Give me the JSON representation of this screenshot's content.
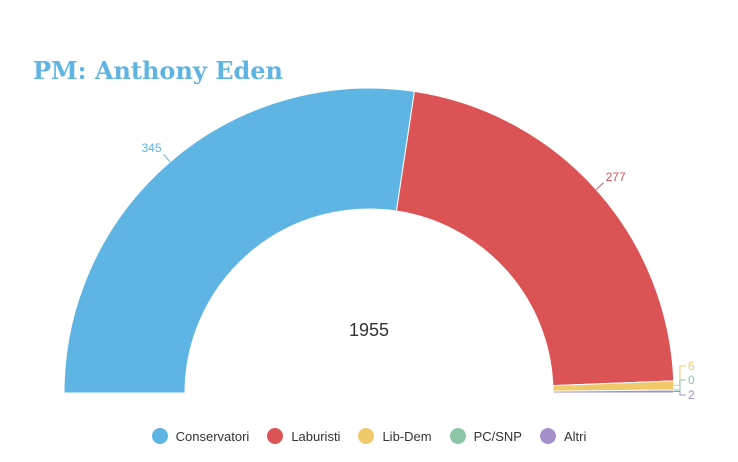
{
  "chart_data": {
    "type": "pie",
    "variant": "semicircle-donut",
    "title": "PM: Anthony Eden",
    "center_label": "1955",
    "series": [
      {
        "name": "Conservatori",
        "value": 345,
        "color": "#5eb4e2"
      },
      {
        "name": "Laburisti",
        "value": 277,
        "color": "#dc5356"
      },
      {
        "name": "Lib-Dem",
        "value": 6,
        "color": "#f0c96b"
      },
      {
        "name": "PC/SNP",
        "value": 0,
        "color": "#8cc6a6"
      },
      {
        "name": "Altri",
        "value": 2,
        "color": "#a58fc8"
      }
    ],
    "legend": "bottom"
  }
}
